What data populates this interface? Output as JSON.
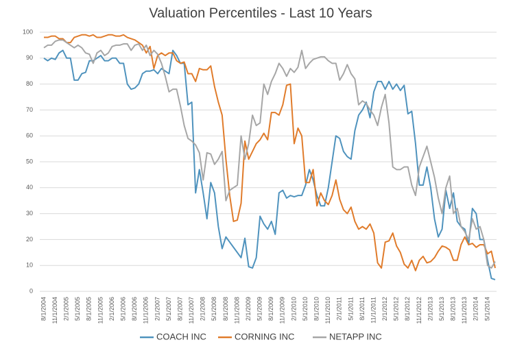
{
  "chart_data": {
    "type": "line",
    "title": "Valuation Percentiles - Last 10 Years",
    "categories": [
      "8/1/2004",
      null,
      null,
      "11/1/2004",
      null,
      null,
      "2/1/2005",
      null,
      null,
      "5/1/2005",
      null,
      null,
      "8/1/2005",
      null,
      null,
      "11/1/2005",
      null,
      null,
      "2/1/2006",
      null,
      null,
      "5/1/2006",
      null,
      null,
      "8/1/2006",
      null,
      null,
      "11/1/2006",
      null,
      null,
      "2/1/2007",
      null,
      null,
      "5/1/2007",
      null,
      null,
      "8/1/2007",
      null,
      null,
      "11/1/2007",
      null,
      null,
      "2/1/2008",
      null,
      null,
      "5/1/2008",
      null,
      null,
      "8/1/2008",
      null,
      null,
      "11/1/2008",
      null,
      null,
      "2/1/2009",
      null,
      null,
      "5/1/2009",
      null,
      null,
      "8/1/2009",
      null,
      null,
      "11/1/2009",
      null,
      null,
      "2/1/2010",
      null,
      null,
      "5/1/2010",
      null,
      null,
      "8/1/2010",
      null,
      null,
      "11/1/2010",
      null,
      null,
      "2/1/2011",
      null,
      null,
      "5/1/2011",
      null,
      null,
      "8/1/2011",
      null,
      null,
      "11/1/2011",
      null,
      null,
      "2/1/2012",
      null,
      null,
      "5/1/2012",
      null,
      null,
      "8/1/2012",
      null,
      null,
      "11/1/2012",
      null,
      null,
      "2/1/2013",
      null,
      null,
      "5/1/2013",
      null,
      null,
      "8/1/2013",
      null,
      null,
      "11/1/2013",
      null,
      null,
      "2/1/2014",
      null,
      null,
      "5/1/2014",
      null,
      null
    ],
    "series": [
      {
        "name": "COACH INC",
        "color": "#4e92bd",
        "values": [
          90,
          89,
          90,
          89.5,
          92,
          93,
          90,
          90,
          81.5,
          81.5,
          84,
          84.5,
          89,
          89,
          90,
          91,
          89,
          89,
          90,
          90,
          88,
          88,
          80,
          78,
          78.5,
          80,
          84,
          85,
          85,
          85.5,
          84,
          86,
          85,
          84,
          93,
          91,
          88,
          88,
          72,
          73,
          38,
          47,
          38,
          28,
          42,
          38,
          25,
          16.5,
          21,
          19,
          17,
          15,
          13,
          20.5,
          9.5,
          9,
          13,
          29,
          26,
          24,
          27,
          22,
          38,
          39,
          36,
          37,
          36.5,
          37,
          37,
          41,
          47,
          43,
          37,
          33,
          33,
          40,
          50,
          60,
          59,
          54,
          52,
          51,
          62,
          68,
          70,
          73,
          67,
          77,
          81,
          81,
          78,
          81,
          78,
          80,
          77.5,
          79.5,
          68.5,
          69.5,
          57,
          41,
          41,
          48,
          40,
          28,
          21,
          24,
          39,
          32,
          38,
          27,
          25,
          24,
          18,
          32,
          30,
          20,
          20,
          12,
          5,
          4.5
        ]
      },
      {
        "name": "CORNING INC",
        "color": "#e07b2a",
        "values": [
          98,
          98,
          98.5,
          98.5,
          97.5,
          97.5,
          96,
          96,
          98,
          98.5,
          99,
          99,
          98.5,
          99,
          98,
          98,
          98.5,
          99,
          99,
          98.5,
          98.5,
          99,
          98,
          97.5,
          97,
          96,
          95,
          92,
          94.5,
          86,
          91,
          92,
          91,
          92,
          92,
          89,
          88,
          88.5,
          84,
          84,
          81,
          86,
          85.5,
          85.5,
          87,
          79,
          73,
          68,
          51,
          37,
          27,
          27.5,
          34,
          58,
          51,
          54,
          57,
          58.5,
          61,
          58.5,
          69,
          69,
          68,
          72,
          79.5,
          80,
          57,
          63,
          60,
          42,
          42,
          47,
          33,
          38,
          35,
          33.5,
          37,
          43,
          35.5,
          31.5,
          30,
          32.5,
          27,
          24,
          25,
          24,
          26,
          22.5,
          11,
          9,
          19,
          19.5,
          22.5,
          17.5,
          15,
          10.5,
          9,
          12,
          8,
          12,
          13.5,
          11,
          11.5,
          13,
          15.5,
          17.5,
          17,
          16,
          12,
          12,
          18,
          21,
          18,
          18.5,
          17,
          18,
          18,
          14.5,
          15.5,
          9
        ]
      },
      {
        "name": "NETAPP INC",
        "color": "#a6a6a6",
        "values": [
          94,
          95,
          95,
          96.5,
          97,
          97,
          96,
          95,
          94,
          95,
          94,
          92,
          91.5,
          88,
          92,
          93,
          91,
          92,
          94.5,
          95,
          95,
          95.5,
          95.5,
          93,
          95,
          95.5,
          93,
          95,
          91,
          93,
          91.5,
          88,
          83,
          77,
          78,
          78,
          71.5,
          64,
          59,
          58,
          56.5,
          53.5,
          43,
          53.5,
          53,
          49,
          51,
          54,
          35,
          39,
          40,
          41,
          60,
          51,
          57,
          68,
          64,
          65,
          80,
          76,
          81,
          84,
          88,
          86,
          83,
          86,
          84.5,
          86.5,
          93,
          86,
          88,
          89.5,
          90,
          90.5,
          90.5,
          89,
          88,
          88,
          81.5,
          84,
          87.5,
          84,
          82,
          72,
          73.5,
          72.5,
          70,
          68,
          64,
          71,
          76,
          65,
          48,
          47,
          47,
          48,
          48,
          41,
          37,
          48,
          52,
          56,
          50,
          44,
          36,
          30,
          40,
          44.5,
          30,
          32,
          25,
          23,
          20,
          28,
          24,
          25,
          20,
          10,
          9,
          11.5
        ]
      }
    ],
    "ylim": [
      0,
      100
    ],
    "yticks": [
      0,
      10,
      20,
      30,
      40,
      50,
      60,
      70,
      80,
      90,
      100
    ],
    "grid": true,
    "legend": "bottom"
  }
}
